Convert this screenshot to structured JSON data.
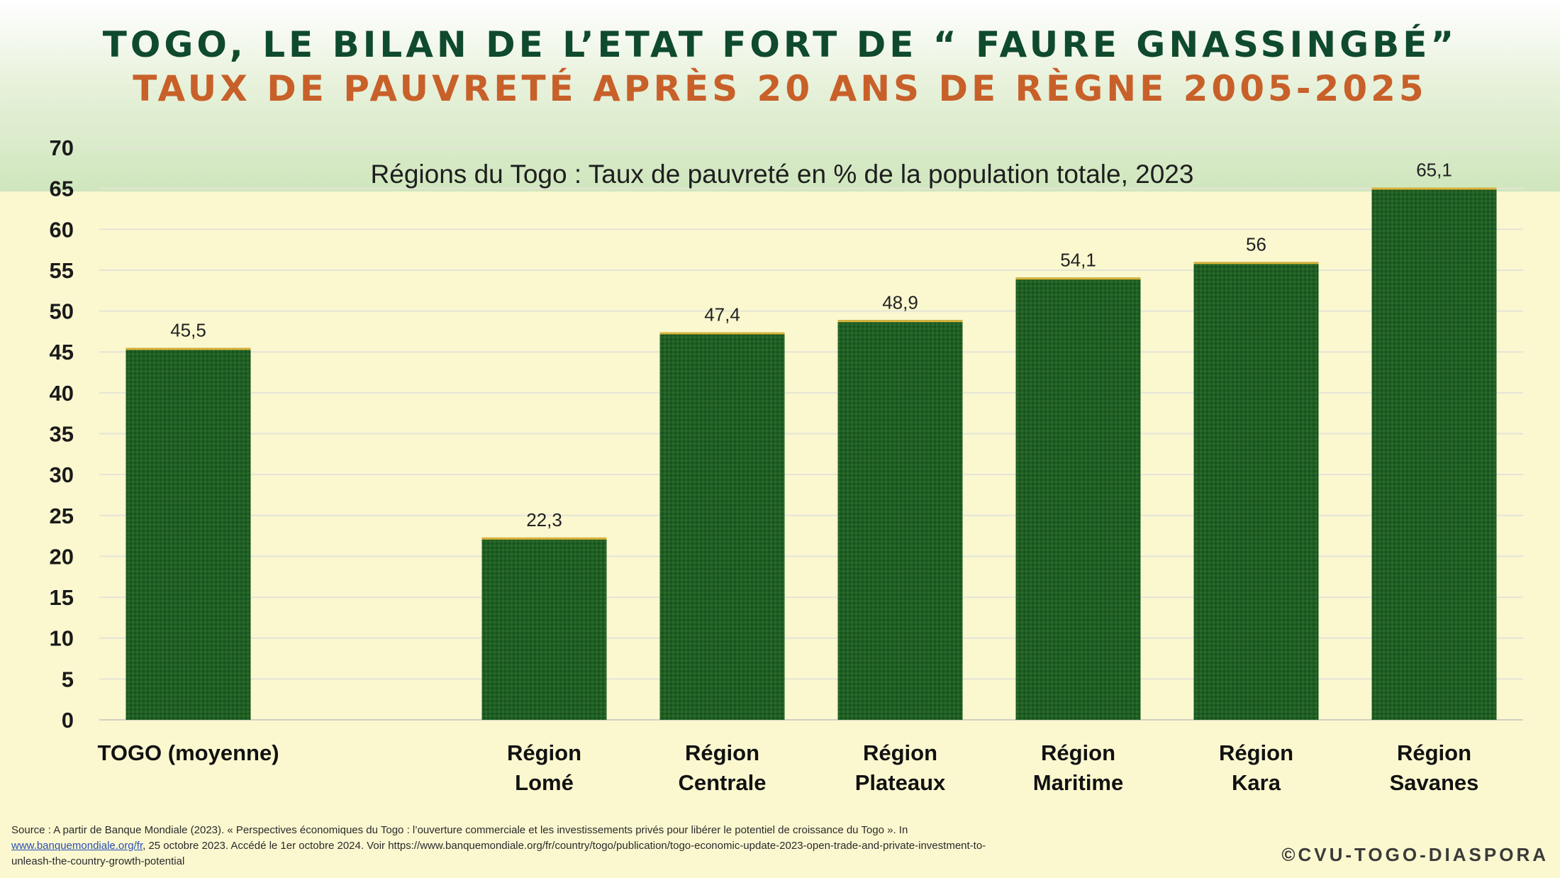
{
  "header": {
    "title_line1": "TOGO, LE BILAN DE L’ETAT FORT DE “ FAURE  GNASSINGBÉ”",
    "title_line2": "TAUX DE PAUVRETÉ APRÈS 20 ANS DE RÈGNE 2005-2025"
  },
  "chart_data": {
    "type": "bar",
    "title": "Régions du Togo : Taux de pauvreté en % de la population totale, 2023",
    "xlabel": "",
    "ylabel": "",
    "ylim": [
      0,
      70
    ],
    "yticks": [
      0,
      5,
      10,
      15,
      20,
      25,
      30,
      35,
      40,
      45,
      50,
      55,
      60,
      65,
      70
    ],
    "grid": true,
    "legend": "none",
    "bar_color": "#1f5e23",
    "slots": 8,
    "categories": [
      {
        "lines": [
          "TOGO (moyenne)"
        ],
        "slot": 0
      },
      {
        "lines": [
          "Région",
          "Lomé"
        ],
        "slot": 2
      },
      {
        "lines": [
          "Région",
          "Centrale"
        ],
        "slot": 3
      },
      {
        "lines": [
          "Région",
          "Plateaux"
        ],
        "slot": 4
      },
      {
        "lines": [
          "Région",
          "Maritime"
        ],
        "slot": 5
      },
      {
        "lines": [
          "Région",
          "Kara"
        ],
        "slot": 6
      },
      {
        "lines": [
          "Région",
          "Savanes"
        ],
        "slot": 7
      }
    ],
    "values": [
      45.5,
      22.3,
      47.4,
      48.9,
      54.1,
      56,
      65.1
    ],
    "value_labels": [
      "45,5",
      "22,3",
      "47,4",
      "48,9",
      "54,1",
      "56",
      "65,1"
    ]
  },
  "footer": {
    "source_part1": "Source : A partir de Banque Mondiale (2023). « Perspectives économiques du Togo : l’ouverture commerciale et les investissements privés pour libérer le potentiel de croissance du Togo ». In",
    "source_link": "www.banquemondiale.org/fr",
    "source_part2": ", 25 octobre 2023. Accédé le 1er octobre 2024. Voir https://www.banquemondiale.org/fr/country/togo/publication/togo-economic-update-2023-open-trade-and-private-investment-to-unleash-the-country-growth-potential",
    "copyright": "©CVU-TOGO-DIASPORA"
  }
}
